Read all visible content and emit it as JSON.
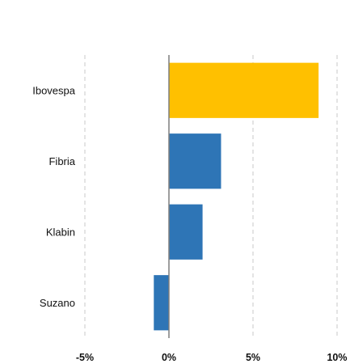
{
  "chart_data": {
    "type": "bar",
    "orientation": "horizontal",
    "title_partial": "",
    "categories": [
      "Ibovespa",
      "Fibria",
      "Klabin",
      "Suzano"
    ],
    "values": [
      8.9,
      3.1,
      2.0,
      -0.9
    ],
    "xlim": [
      -5,
      10
    ],
    "xticks": [
      -5,
      0,
      5,
      10
    ],
    "xtick_labels": [
      "-5%",
      "0%",
      "5%",
      "10%"
    ],
    "grid": "vertical-dashed",
    "colors": {
      "highlight": "#ffc000",
      "bar": "#2e75b6",
      "title": "#f5a800",
      "grid": "#c8c8c8",
      "zero_line": "#7f7f7f"
    },
    "highlight_index": 0
  }
}
